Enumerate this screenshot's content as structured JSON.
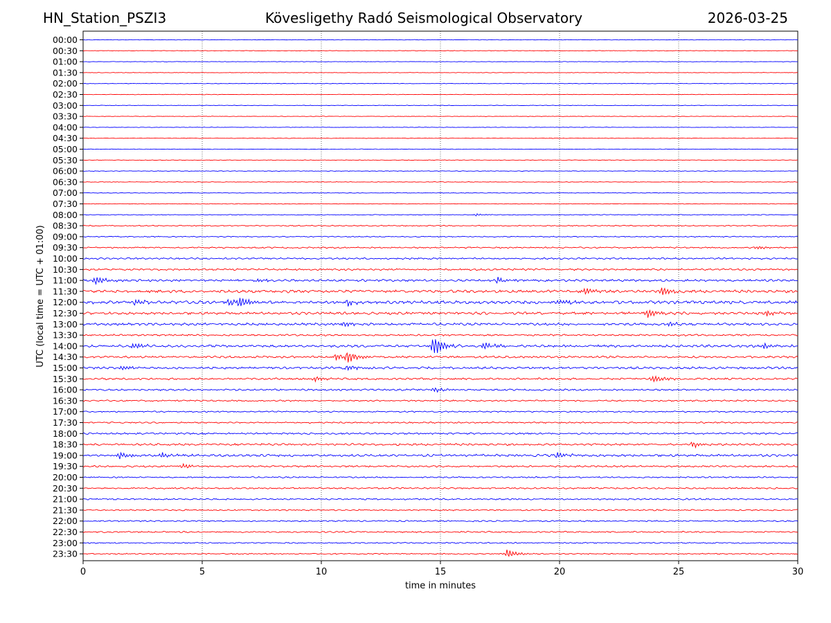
{
  "header": {
    "station": "HN_Station_PSZI3",
    "observatory": "Kövesligethy Radó Seismological Observatory",
    "date": "2026-03-25"
  },
  "chart_data": {
    "type": "line",
    "title": "Kövesligethy Radó Seismological Observatory",
    "xlabel": "time in minutes",
    "ylabel": "UTC (local time = UTC + 01:00)",
    "xlim": [
      0,
      30
    ],
    "x_ticks": [
      0,
      5,
      10,
      15,
      20,
      25,
      30
    ],
    "grid": "vertical dotted at 5, 10, 15, 20, 25",
    "series_colors": [
      "#0000ff",
      "#ff0000"
    ],
    "row_labels": [
      "00:00",
      "00:30",
      "01:00",
      "01:30",
      "02:00",
      "02:30",
      "03:00",
      "03:30",
      "04:00",
      "04:30",
      "05:00",
      "05:30",
      "06:00",
      "06:30",
      "07:00",
      "07:30",
      "08:00",
      "08:30",
      "09:00",
      "09:30",
      "10:00",
      "10:30",
      "11:00",
      "11:30",
      "12:00",
      "12:30",
      "13:00",
      "13:30",
      "14:00",
      "14:30",
      "15:00",
      "15:30",
      "16:00",
      "16:30",
      "17:00",
      "17:30",
      "18:00",
      "18:30",
      "19:00",
      "19:30",
      "20:00",
      "20:30",
      "21:00",
      "21:30",
      "22:00",
      "22:30",
      "23:00",
      "23:30"
    ],
    "noise_level": [
      0.3,
      0.3,
      0.3,
      0.3,
      0.3,
      0.3,
      0.3,
      0.3,
      0.3,
      0.3,
      0.3,
      0.3,
      0.35,
      0.35,
      0.35,
      0.35,
      0.45,
      0.6,
      0.6,
      0.8,
      1.0,
      1.1,
      1.3,
      1.6,
      1.8,
      1.5,
      1.4,
      1.0,
      1.4,
      1.2,
      1.3,
      1.1,
      1.0,
      0.9,
      0.8,
      0.8,
      1.0,
      1.2,
      1.4,
      1.0,
      0.8,
      0.9,
      0.9,
      0.8,
      0.8,
      0.8,
      0.7,
      0.7
    ],
    "events": [
      {
        "row": "08:00",
        "minute": 16.5,
        "amplitude": 2
      },
      {
        "row": "09:30",
        "minute": 28.3,
        "amplitude": 3
      },
      {
        "row": "11:00",
        "minute": 0.5,
        "amplitude": 7
      },
      {
        "row": "11:00",
        "minute": 7.3,
        "amplitude": 4
      },
      {
        "row": "11:00",
        "minute": 17.4,
        "amplitude": 5
      },
      {
        "row": "11:30",
        "minute": 21.1,
        "amplitude": 6
      },
      {
        "row": "11:30",
        "minute": 24.3,
        "amplitude": 7
      },
      {
        "row": "12:00",
        "minute": 2.2,
        "amplitude": 4
      },
      {
        "row": "12:00",
        "minute": 6.1,
        "amplitude": 6
      },
      {
        "row": "12:00",
        "minute": 6.6,
        "amplitude": 6
      },
      {
        "row": "12:00",
        "minute": 11.1,
        "amplitude": 5
      },
      {
        "row": "12:00",
        "minute": 19.9,
        "amplitude": 4
      },
      {
        "row": "12:30",
        "minute": 23.7,
        "amplitude": 8
      },
      {
        "row": "12:30",
        "minute": 28.7,
        "amplitude": 5
      },
      {
        "row": "13:00",
        "minute": 10.9,
        "amplitude": 4
      },
      {
        "row": "13:00",
        "minute": 24.6,
        "amplitude": 4
      },
      {
        "row": "14:00",
        "minute": 2.1,
        "amplitude": 5
      },
      {
        "row": "14:00",
        "minute": 14.7,
        "amplitude": 18
      },
      {
        "row": "14:00",
        "minute": 16.8,
        "amplitude": 6
      },
      {
        "row": "14:00",
        "minute": 28.6,
        "amplitude": 5
      },
      {
        "row": "14:30",
        "minute": 10.6,
        "amplitude": 6
      },
      {
        "row": "14:30",
        "minute": 11.1,
        "amplitude": 8
      },
      {
        "row": "15:00",
        "minute": 1.6,
        "amplitude": 4
      },
      {
        "row": "15:00",
        "minute": 11.1,
        "amplitude": 4
      },
      {
        "row": "15:30",
        "minute": 9.7,
        "amplitude": 4
      },
      {
        "row": "15:30",
        "minute": 23.9,
        "amplitude": 6
      },
      {
        "row": "16:00",
        "minute": 14.7,
        "amplitude": 4
      },
      {
        "row": "18:30",
        "minute": 25.6,
        "amplitude": 5
      },
      {
        "row": "19:00",
        "minute": 1.5,
        "amplitude": 6
      },
      {
        "row": "19:00",
        "minute": 3.3,
        "amplitude": 5
      },
      {
        "row": "19:00",
        "minute": 19.9,
        "amplitude": 5
      },
      {
        "row": "19:30",
        "minute": 4.2,
        "amplitude": 4
      },
      {
        "row": "23:30",
        "minute": 17.8,
        "amplitude": 7
      }
    ]
  }
}
